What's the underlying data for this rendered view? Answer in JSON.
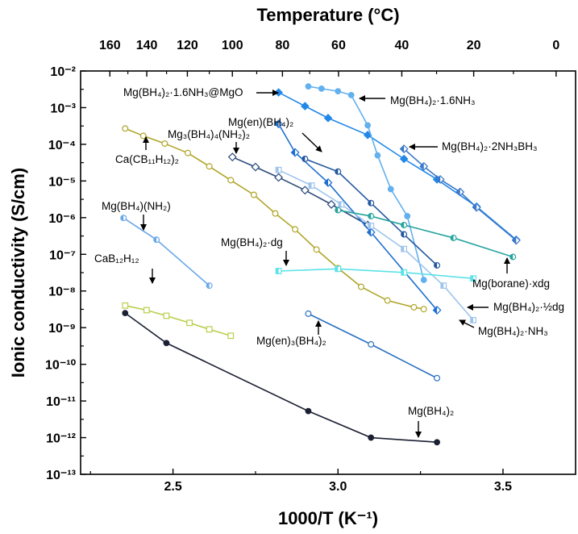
{
  "chart_data": {
    "type": "scatter",
    "xlabel": "1000/T (K⁻¹)",
    "x2label": "Temperature (°C)",
    "ylabel": "Ionic conductivity (S/cm)",
    "xlim": [
      2.22,
      3.72
    ],
    "ylim_log10": [
      -13,
      -2
    ],
    "y_scale": "log",
    "x_ticks": [
      2.5,
      3.0,
      3.5
    ],
    "y_ticks": [
      {
        "exp": -2,
        "label": "10⁻²"
      },
      {
        "exp": -3,
        "label": "10⁻³"
      },
      {
        "exp": -4,
        "label": "10⁻⁴"
      },
      {
        "exp": -5,
        "label": "10⁻⁵"
      },
      {
        "exp": -6,
        "label": "10⁻⁶"
      },
      {
        "exp": -7,
        "label": "10⁻⁷"
      },
      {
        "exp": -8,
        "label": "10⁻⁸"
      },
      {
        "exp": -9,
        "label": "10⁻⁹"
      },
      {
        "exp": -10,
        "label": "10⁻¹⁰"
      },
      {
        "exp": -11,
        "label": "10⁻¹¹"
      },
      {
        "exp": -12,
        "label": "10⁻¹²"
      },
      {
        "exp": -13,
        "label": "10⁻¹³"
      }
    ],
    "top_ticks_c": [
      160,
      140,
      120,
      100,
      80,
      60,
      40,
      20,
      0
    ],
    "grid": false,
    "series": [
      {
        "key": "mg-bh4-2",
        "name": "Mg(BH₄)₂",
        "color": "#1b2033",
        "marker": "circle",
        "fill": "full",
        "x": [
          2.355,
          2.48,
          2.91,
          3.1,
          3.3
        ],
        "y": [
          2.5e-09,
          3.8e-10,
          5.3e-12,
          1e-12,
          7.5e-13
        ]
      },
      {
        "key": "cab12h12",
        "name": "CaB₁₂H₁₂",
        "color": "#b8cf4a",
        "marker": "square",
        "fill": "open",
        "x": [
          2.355,
          2.42,
          2.48,
          2.55,
          2.61,
          2.675
        ],
        "y": [
          4e-09,
          3e-09,
          2.1e-09,
          1.35e-09,
          9e-10,
          6e-10
        ]
      },
      {
        "key": "ca-cb11h12-2",
        "name": "Ca(CB₁₁H₁₂)₂",
        "color": "#b0a528",
        "marker": "circle",
        "fill": "open",
        "x": [
          2.355,
          2.41,
          2.475,
          2.545,
          2.61,
          2.675,
          2.745,
          2.81,
          2.87,
          2.935,
          3.0,
          3.07,
          3.15,
          3.23,
          3.26
        ],
        "y": [
          0.00027,
          0.00017,
          0.000105,
          5.8e-05,
          2.5e-05,
          1.05e-05,
          4.2e-06,
          1.3e-06,
          4.8e-07,
          1.35e-07,
          4.2e-08,
          1.3e-08,
          5.5e-09,
          3.6e-09,
          3.2e-09
        ]
      },
      {
        "key": "mg-bh4-nh2",
        "name": "Mg(BH₄)(NH₂)",
        "color": "#6aa8e8",
        "marker": "circle",
        "fill": "half",
        "x": [
          2.35,
          2.45,
          2.61
        ],
        "y": [
          9.8e-07,
          2.5e-07,
          1.4e-08
        ]
      },
      {
        "key": "mg3-bh4-4-nh2-2",
        "name": "Mg₃(BH₄)₄(NH₂)₂",
        "color": "#2c4a7a",
        "marker": "diamond",
        "fill": "open",
        "x": [
          2.68,
          2.75,
          2.82,
          2.9,
          2.98,
          3.09
        ],
        "y": [
          4.5e-05,
          2.4e-05,
          1.25e-05,
          5.6e-06,
          2.3e-06,
          6.3e-07
        ]
      },
      {
        "key": "mg-en-bh4-2",
        "name": "Mg(en)(BH₄)₂",
        "color": "#1e6fd0",
        "marker": "diamond",
        "fill": "half",
        "x": [
          2.82,
          2.87,
          2.97,
          3.1,
          3.3
        ],
        "y": [
          0.00036,
          6e-05,
          9e-06,
          4e-07,
          3e-09
        ]
      },
      {
        "key": "mg-bh4-2-16nh3-mgo",
        "name": "Mg(BH₄)₂·1.6NH₃@MgO",
        "color": "#2288e8",
        "marker": "diamond",
        "fill": "full",
        "x": [
          2.82,
          2.9,
          2.97,
          3.09,
          3.2,
          3.3,
          3.42,
          3.54
        ],
        "y": [
          0.0026,
          0.0011,
          0.00052,
          0.00018,
          4e-05,
          1.1e-05,
          2e-06,
          2.5e-07
        ]
      },
      {
        "key": "mg-bh4-2-16nh3",
        "name": "Mg(BH₄)₂·1.6NH₃",
        "color": "#62b0ee",
        "marker": "circle",
        "fill": "full",
        "x": [
          2.91,
          2.95,
          3.0,
          3.04,
          3.09,
          3.12,
          3.16,
          3.21,
          3.26
        ],
        "y": [
          0.0038,
          0.0033,
          0.0028,
          0.0022,
          0.00033,
          5e-05,
          6e-06,
          1.1e-06,
          2e-08
        ]
      },
      {
        "key": "mg-bh4-2-2nh3bh3",
        "name": "Mg(BH₄)₂·2NH₃BH₃",
        "color": "#3a78c8",
        "marker": "diamond",
        "fill": "half",
        "x": [
          3.2,
          3.26,
          3.31,
          3.37,
          3.42,
          3.54
        ],
        "y": [
          7.5e-05,
          2.5e-05,
          1.1e-05,
          5e-06,
          1.9e-06,
          2.4e-07
        ]
      },
      {
        "key": "mg-bh4-2-nh3",
        "name": "Mg(BH₄)₂·NH₃",
        "color": "#9ec4ec",
        "marker": "square",
        "fill": "half",
        "x": [
          2.82,
          2.92,
          3.01,
          3.1,
          3.2,
          3.32,
          3.41
        ],
        "y": [
          2e-05,
          7.5e-06,
          2.3e-06,
          6e-07,
          1.4e-07,
          1.4e-08,
          1.6e-09
        ]
      },
      {
        "key": "mg-bh4-2-half-dg",
        "name": "Mg(BH₄)₂·½dg",
        "color": "#23579e",
        "marker": "circle",
        "fill": "half",
        "x": [
          2.9,
          3.0,
          3.1,
          3.2,
          3.3
        ],
        "y": [
          4e-05,
          1.8e-05,
          2.5e-06,
          3.5e-07,
          5e-08
        ]
      },
      {
        "key": "mg-borane-xdg",
        "name": "Mg(borane)·xdg",
        "color": "#27a49e",
        "marker": "circle",
        "fill": "half",
        "x": [
          3.0,
          3.1,
          3.2,
          3.35,
          3.53
        ],
        "y": [
          1.6e-06,
          1.1e-06,
          6.3e-07,
          2.8e-07,
          8.5e-08
        ]
      },
      {
        "key": "mg-bh4-2-dg",
        "name": "Mg(BH₄)₂·dg",
        "color": "#5ce2e8",
        "marker": "square",
        "fill": "half",
        "x": [
          2.82,
          3.0,
          3.2,
          3.41
        ],
        "y": [
          3.5e-08,
          4e-08,
          3.2e-08,
          2.2e-08
        ]
      },
      {
        "key": "mg-en-3-bh4-2",
        "name": "Mg(en)₃(BH₄)₂",
        "color": "#2a70c0",
        "marker": "circle",
        "fill": "open",
        "x": [
          2.91,
          3.1,
          3.3
        ],
        "y": [
          2.4e-09,
          3.5e-10,
          4.2e-11
        ]
      }
    ],
    "annotations": [
      {
        "series": "mg-bh4-2-16nh3-mgo",
        "text": "Mg(BH₄)₂·1.6NH₃@MgO"
      },
      {
        "series": "mg-bh4-2-16nh3",
        "text": "Mg(BH₄)₂·1.6NH₃"
      },
      {
        "series": "mg-en-bh4-2",
        "text": "Mg(en)(BH₄)₂"
      },
      {
        "series": "mg3-bh4-4-nh2-2",
        "text": "Mg₃(BH₄)₄(NH₂)₂"
      },
      {
        "series": "mg-bh4-2-2nh3bh3",
        "text": "Mg(BH₄)₂·2NH₃BH₃"
      },
      {
        "series": "ca-cb11h12-2",
        "text": "Ca(CB₁₁H₁₂)₂"
      },
      {
        "series": "mg-bh4-nh2",
        "text": "Mg(BH₄)(NH₂)"
      },
      {
        "series": "mg-bh4-2-dg",
        "text": "Mg(BH₄)₂·dg"
      },
      {
        "series": "mg-borane-xdg",
        "text": "Mg(borane)·xdg"
      },
      {
        "series": "cab12h12",
        "text": "CaB₁₂H₁₂"
      },
      {
        "series": "mg-bh4-2-half-dg",
        "text": "Mg(BH₄)₂·½dg"
      },
      {
        "series": "mg-bh4-2-nh3",
        "text": "Mg(BH₄)₂·NH₃"
      },
      {
        "series": "mg-en-3-bh4-2",
        "text": "Mg(en)₃(BH₄)₂"
      },
      {
        "series": "mg-bh4-2",
        "text": "Mg(BH₄)₂"
      }
    ]
  }
}
